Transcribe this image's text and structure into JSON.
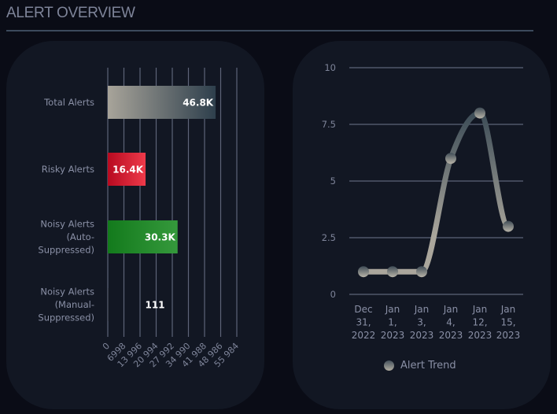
{
  "header": {
    "title": "ALERT OVERVIEW"
  },
  "chart_data": [
    {
      "type": "bar",
      "orientation": "horizontal",
      "categories": [
        "Total Alerts",
        "Risky Alerts",
        "Noisy Alerts (Auto-Suppressed)",
        "Noisy Alerts (Manual-Suppressed)"
      ],
      "category_lines": [
        [
          "Total Alerts"
        ],
        [
          "Risky Alerts"
        ],
        [
          "Noisy Alerts",
          "(Auto-",
          "Suppressed)"
        ],
        [
          "Noisy Alerts",
          "(Manual-",
          "Suppressed)"
        ]
      ],
      "values": [
        46800,
        16400,
        30300,
        111
      ],
      "data_labels": [
        "46.8K",
        "16.4K",
        "30.3K",
        "111"
      ],
      "bar_colors": [
        [
          "#a8a49a",
          "#2e3f4c"
        ],
        [
          "#b80a20",
          "#ee3a4a"
        ],
        [
          "#137a1c",
          "#35993c"
        ],
        [
          "#444444",
          "#555555"
        ]
      ],
      "x_ticks": [
        0,
        6998,
        13996,
        20994,
        27992,
        34990,
        41988,
        48986,
        55984
      ],
      "x_tick_labels": [
        "0",
        "6998",
        "13 996",
        "20 994",
        "27 992",
        "34 990",
        "41 988",
        "48 986",
        "55 984"
      ],
      "xlim": [
        0,
        55984
      ],
      "grid": true,
      "title": "",
      "xlabel": "",
      "ylabel": ""
    },
    {
      "type": "line",
      "x": [
        "Dec 31, 2022",
        "Jan 1, 2023",
        "Jan 3, 2023",
        "Jan 4, 2023",
        "Jan 12, 2023",
        "Jan 15, 2023"
      ],
      "x_label_lines": [
        [
          "Dec",
          "31,",
          "2022"
        ],
        [
          "Jan",
          "1,",
          "2023"
        ],
        [
          "Jan",
          "3,",
          "2023"
        ],
        [
          "Jan",
          "4,",
          "2023"
        ],
        [
          "Jan",
          "12,",
          "2023"
        ],
        [
          "Jan",
          "15,",
          "2023"
        ]
      ],
      "series": [
        {
          "name": "Alert Trend",
          "values": [
            1,
            1,
            1,
            6,
            8,
            3
          ]
        }
      ],
      "y_ticks": [
        0,
        2.5,
        5,
        7.5,
        10
      ],
      "y_tick_labels": [
        "0",
        "2.5",
        "5",
        "7.5",
        "10"
      ],
      "ylim": [
        0,
        10
      ],
      "grid": true,
      "legend": "bottom-center",
      "line_gradient": [
        "#3a4a55",
        "#aaa69c"
      ],
      "title": "",
      "xlabel": "",
      "ylabel": ""
    }
  ]
}
